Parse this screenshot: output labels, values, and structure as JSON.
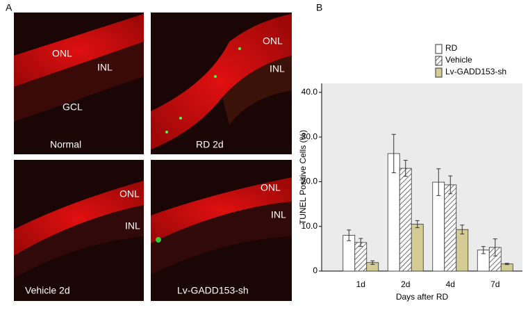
{
  "panel_labels": [
    "A",
    "B"
  ],
  "micrographs": [
    {
      "caption": "Normal",
      "labels": [
        "ONL",
        "INL",
        "GCL"
      ]
    },
    {
      "caption": "RD 2d",
      "labels": [
        "ONL",
        "INL"
      ]
    },
    {
      "caption": "Vehicle 2d",
      "labels": [
        "ONL",
        "INL"
      ]
    },
    {
      "caption": "Lv-GADD153-sh",
      "labels": [
        "ONL",
        "INL"
      ]
    }
  ],
  "chart_data": {
    "type": "bar",
    "x_label": "Days after RD",
    "y_label": "TUNEL Positive Cells (%)",
    "categories": [
      "1d",
      "2d",
      "4d",
      "7d"
    ],
    "series": [
      {
        "name": "RD",
        "color": "#ffffff",
        "hatch": false,
        "values": [
          8.0,
          26.3,
          19.9,
          4.7
        ],
        "errors": [
          1.2,
          4.3,
          3.0,
          0.8
        ]
      },
      {
        "name": "Vehicle",
        "color": "#ffffff",
        "hatch": true,
        "values": [
          6.4,
          23.0,
          19.3,
          5.3
        ],
        "errors": [
          0.9,
          1.8,
          2.0,
          1.9
        ]
      },
      {
        "name": "Lv-GADD153-sh",
        "color": "#d4cc94",
        "hatch": false,
        "values": [
          1.9,
          10.5,
          9.3,
          1.6
        ],
        "errors": [
          0.4,
          0.8,
          1.0,
          0.15
        ]
      }
    ],
    "ylim": [
      0,
      42
    ],
    "yticks": [
      0,
      {
        "value": 10,
        "label": "10.0"
      },
      {
        "value": 20,
        "label": "20.0"
      },
      {
        "value": 30,
        "label": "30.0"
      },
      {
        "value": 40,
        "label": "40.0"
      }
    ],
    "background": "#ebebeb"
  }
}
